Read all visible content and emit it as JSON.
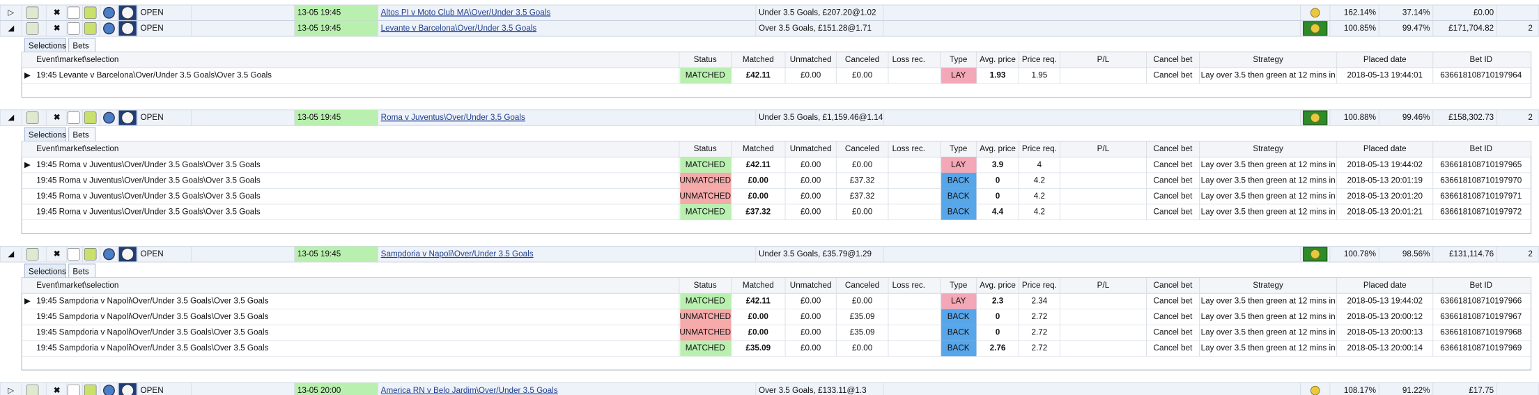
{
  "markets": [
    {
      "status": "OPEN",
      "time": "13-05 19:45",
      "event": "Altos PI v Moto Club MA\\Over/Under 3.5 Goals",
      "summary": "Under 3.5 Goals, £207.20@1.02",
      "back_pct": "162.14%",
      "lay_pct": "37.14%",
      "amount": "£0.00"
    },
    {
      "status": "OPEN",
      "time": "13-05 19:45",
      "event": "Levante v Barcelona\\Over/Under 3.5 Goals",
      "summary": "Over 3.5 Goals, £151.28@1.71",
      "back_pct": "100.85%",
      "lay_pct": "99.47%",
      "amount": "£171,704.82",
      "count": "2",
      "tabs": [
        "Selections",
        "Bets"
      ],
      "bets": {
        "columns": [
          "Event\\market\\selection",
          "Status",
          "Matched",
          "Unmatched",
          "Canceled",
          "Loss rec.",
          "Type",
          "Avg. price",
          "Price req.",
          "P/L",
          "Cancel bet",
          "Strategy",
          "Placed date",
          "Bet ID"
        ],
        "rows": [
          [
            "19:45 Levante v Barcelona\\Over/Under 3.5 Goals\\Over 3.5 Goals",
            "MATCHED",
            "£42.11",
            "£0.00",
            "£0.00",
            "",
            "LAY",
            "1.93",
            "1.95",
            "",
            "Cancel bet",
            "Lay over 3.5  then green at 12 mins in",
            "2018-05-13 19:44:01",
            "636618108710197964"
          ]
        ]
      }
    },
    {
      "status": "OPEN",
      "time": "13-05 19:45",
      "event": "Roma v Juventus\\Over/Under 3.5 Goals",
      "summary": "Under 3.5 Goals, £1,159.46@1.14",
      "back_pct": "100.88%",
      "lay_pct": "99.46%",
      "amount": "£158,302.73",
      "count": "2",
      "tabs": [
        "Selections",
        "Bets"
      ],
      "bets": {
        "columns": [
          "Event\\market\\selection",
          "Status",
          "Matched",
          "Unmatched",
          "Canceled",
          "Loss rec.",
          "Type",
          "Avg. price",
          "Price req.",
          "P/L",
          "Cancel bet",
          "Strategy",
          "Placed date",
          "Bet ID"
        ],
        "rows": [
          [
            "19:45 Roma v Juventus\\Over/Under 3.5 Goals\\Over 3.5 Goals",
            "MATCHED",
            "£42.11",
            "£0.00",
            "£0.00",
            "",
            "LAY",
            "3.9",
            "4",
            "",
            "Cancel bet",
            "Lay over 3.5  then green at 12 mins in",
            "2018-05-13 19:44:02",
            "636618108710197965"
          ],
          [
            "19:45 Roma v Juventus\\Over/Under 3.5 Goals\\Over 3.5 Goals",
            "UNMATCHED",
            "£0.00",
            "£0.00",
            "£37.32",
            "",
            "BACK",
            "0",
            "4.2",
            "",
            "Cancel bet",
            "Lay over 3.5  then green at 12 mins in",
            "2018-05-13 20:01:19",
            "636618108710197970"
          ],
          [
            "19:45 Roma v Juventus\\Over/Under 3.5 Goals\\Over 3.5 Goals",
            "UNMATCHED",
            "£0.00",
            "£0.00",
            "£37.32",
            "",
            "BACK",
            "0",
            "4.2",
            "",
            "Cancel bet",
            "Lay over 3.5  then green at 12 mins in",
            "2018-05-13 20:01:20",
            "636618108710197971"
          ],
          [
            "19:45 Roma v Juventus\\Over/Under 3.5 Goals\\Over 3.5 Goals",
            "MATCHED",
            "£37.32",
            "£0.00",
            "£0.00",
            "",
            "BACK",
            "4.4",
            "4.2",
            "",
            "Cancel bet",
            "Lay over 3.5  then green at 12 mins in",
            "2018-05-13 20:01:21",
            "636618108710197972"
          ]
        ]
      }
    },
    {
      "status": "OPEN",
      "time": "13-05 19:45",
      "event": "Sampdoria v Napoli\\Over/Under 3.5 Goals",
      "summary": "Under 3.5 Goals, £35.79@1.29",
      "back_pct": "100.78%",
      "lay_pct": "98.56%",
      "amount": "£131,114.76",
      "count": "2",
      "tabs": [
        "Selections",
        "Bets"
      ],
      "bets": {
        "columns": [
          "Event\\market\\selection",
          "Status",
          "Matched",
          "Unmatched",
          "Canceled",
          "Loss rec.",
          "Type",
          "Avg. price",
          "Price req.",
          "P/L",
          "Cancel bet",
          "Strategy",
          "Placed date",
          "Bet ID"
        ],
        "rows": [
          [
            "19:45 Sampdoria v Napoli\\Over/Under 3.5 Goals\\Over 3.5 Goals",
            "MATCHED",
            "£42.11",
            "£0.00",
            "£0.00",
            "",
            "LAY",
            "2.3",
            "2.34",
            "",
            "Cancel bet",
            "Lay over 3.5  then green at 12 mins in",
            "2018-05-13 19:44:02",
            "636618108710197966"
          ],
          [
            "19:45 Sampdoria v Napoli\\Over/Under 3.5 Goals\\Over 3.5 Goals",
            "UNMATCHED",
            "£0.00",
            "£0.00",
            "£35.09",
            "",
            "BACK",
            "0",
            "2.72",
            "",
            "Cancel bet",
            "Lay over 3.5  then green at 12 mins in",
            "2018-05-13 20:00:12",
            "636618108710197967"
          ],
          [
            "19:45 Sampdoria v Napoli\\Over/Under 3.5 Goals\\Over 3.5 Goals",
            "UNMATCHED",
            "£0.00",
            "£0.00",
            "£35.09",
            "",
            "BACK",
            "0",
            "2.72",
            "",
            "Cancel bet",
            "Lay over 3.5  then green at 12 mins in",
            "2018-05-13 20:00:13",
            "636618108710197968"
          ],
          [
            "19:45 Sampdoria v Napoli\\Over/Under 3.5 Goals\\Over 3.5 Goals",
            "MATCHED",
            "£35.09",
            "£0.00",
            "£0.00",
            "",
            "BACK",
            "2.76",
            "2.72",
            "",
            "Cancel bet",
            "Lay over 3.5  then green at 12 mins in",
            "2018-05-13 20:00:14",
            "636618108710197969"
          ]
        ]
      }
    },
    {
      "status": "OPEN",
      "time": "13-05 20:00",
      "event": "America RN v Belo Jardim\\Over/Under 3.5 Goals",
      "summary": "Over 3.5 Goals, £133.11@1.3",
      "back_pct": "108.17%",
      "lay_pct": "91.22%",
      "amount": "£17.75"
    }
  ]
}
